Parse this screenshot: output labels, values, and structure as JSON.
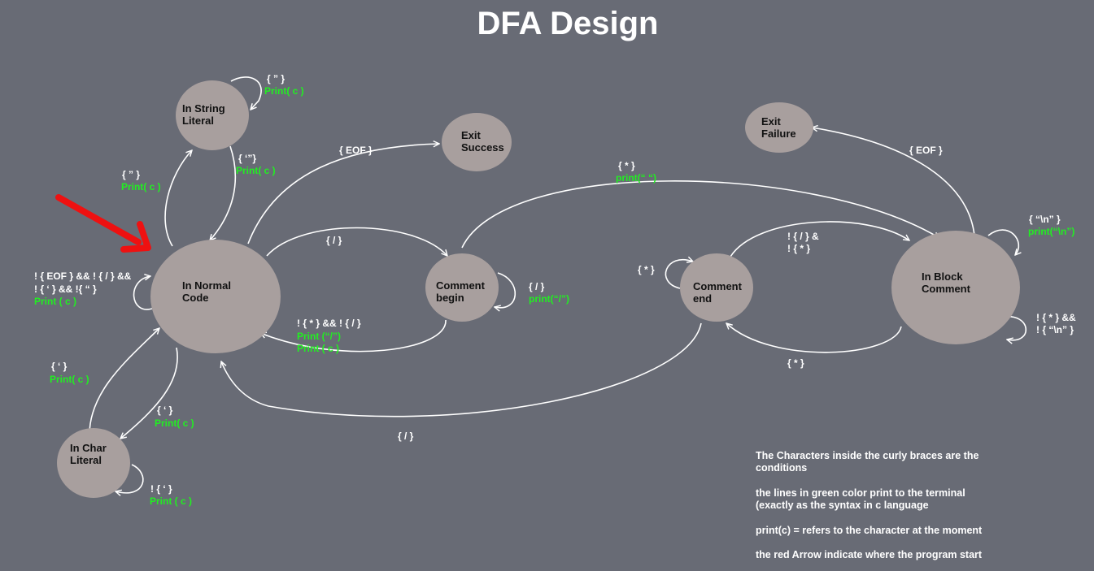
{
  "title": "DFA Design",
  "colors": {
    "background": "#686b75",
    "node": "#a89f9e",
    "condition_text": "#ffffff",
    "action_text": "#22ee22",
    "start_arrow": "#ee1111"
  },
  "states": {
    "normal": [
      "In Normal",
      "Code"
    ],
    "string": [
      "In String",
      "Literal"
    ],
    "char": [
      "In Char",
      "Literal"
    ],
    "success": [
      "Exit",
      "Success"
    ],
    "comment_begin": [
      "Comment",
      "begin"
    ],
    "comment_end": [
      "Comment",
      "end"
    ],
    "block": [
      "In Block",
      "Comment"
    ],
    "failure": [
      "Exit",
      "Failure"
    ]
  },
  "labels": {
    "normal_self": {
      "cond": [
        "! { EOF } && ! { / } &&",
        "! { ‘ } && !{ “ }"
      ],
      "act": [
        "Print ( c )"
      ]
    },
    "normal_to_string": {
      "cond": [
        "{  ”  }"
      ],
      "act": [
        "Print( c )"
      ]
    },
    "string_self": {
      "cond": [
        "{ ” }"
      ],
      "act": [
        "Print( c )"
      ]
    },
    "string_to_normal": {
      "cond": [
        "{  ‘”}"
      ],
      "act": [
        "Print( c )"
      ]
    },
    "normal_to_success": {
      "cond": [
        "{ EOF }"
      ],
      "act": []
    },
    "normal_to_comment_begin": {
      "cond": [
        "{ / }"
      ],
      "act": []
    },
    "comment_begin_to_normal": {
      "cond": [
        "! { * } && ! { / }"
      ],
      "act": [
        "Print (“/”)",
        "Print ( c )"
      ]
    },
    "comment_begin_self": {
      "cond": [
        "{ / }"
      ],
      "act": [
        "print(“/”)"
      ]
    },
    "comment_begin_to_block": {
      "cond": [
        "{ * }"
      ],
      "act": [
        "print(“ “)"
      ]
    },
    "block_to_failure": {
      "cond": [
        "{ EOF }"
      ],
      "act": []
    },
    "block_self_newline": {
      "cond": [
        "{ “\\n” }"
      ],
      "act": [
        "print(“\\n”)"
      ]
    },
    "block_self_other": {
      "cond": [
        "! { * } &&",
        "! { “\\n” }"
      ],
      "act": []
    },
    "comment_end_to_block": {
      "cond": [
        "! { / } &",
        "! { * }"
      ],
      "act": []
    },
    "block_to_comment_end": {
      "cond": [
        "{ * }"
      ],
      "act": []
    },
    "comment_end_self": {
      "cond": [
        "{ * }"
      ],
      "act": []
    },
    "comment_end_to_normal": {
      "cond": [
        "{ / }"
      ],
      "act": []
    },
    "normal_to_char": {
      "cond": [
        "{  ‘  }"
      ],
      "act": [
        "Print( c )"
      ]
    },
    "char_to_normal": {
      "cond": [
        "{  ‘  }"
      ],
      "act": [
        "Print( c )"
      ]
    },
    "char_self": {
      "cond": [
        "! {  ‘ }"
      ],
      "act": [
        "Print  ( c )"
      ]
    }
  },
  "notes": [
    [
      "The Characters inside the curly braces are the",
      "conditions"
    ],
    [
      "the lines in green color print to the terminal",
      "(exactly as the syntax in c language"
    ],
    [
      "print(c) = refers to the character at the moment"
    ],
    [
      "the red Arrow indicate where the program start"
    ]
  ]
}
